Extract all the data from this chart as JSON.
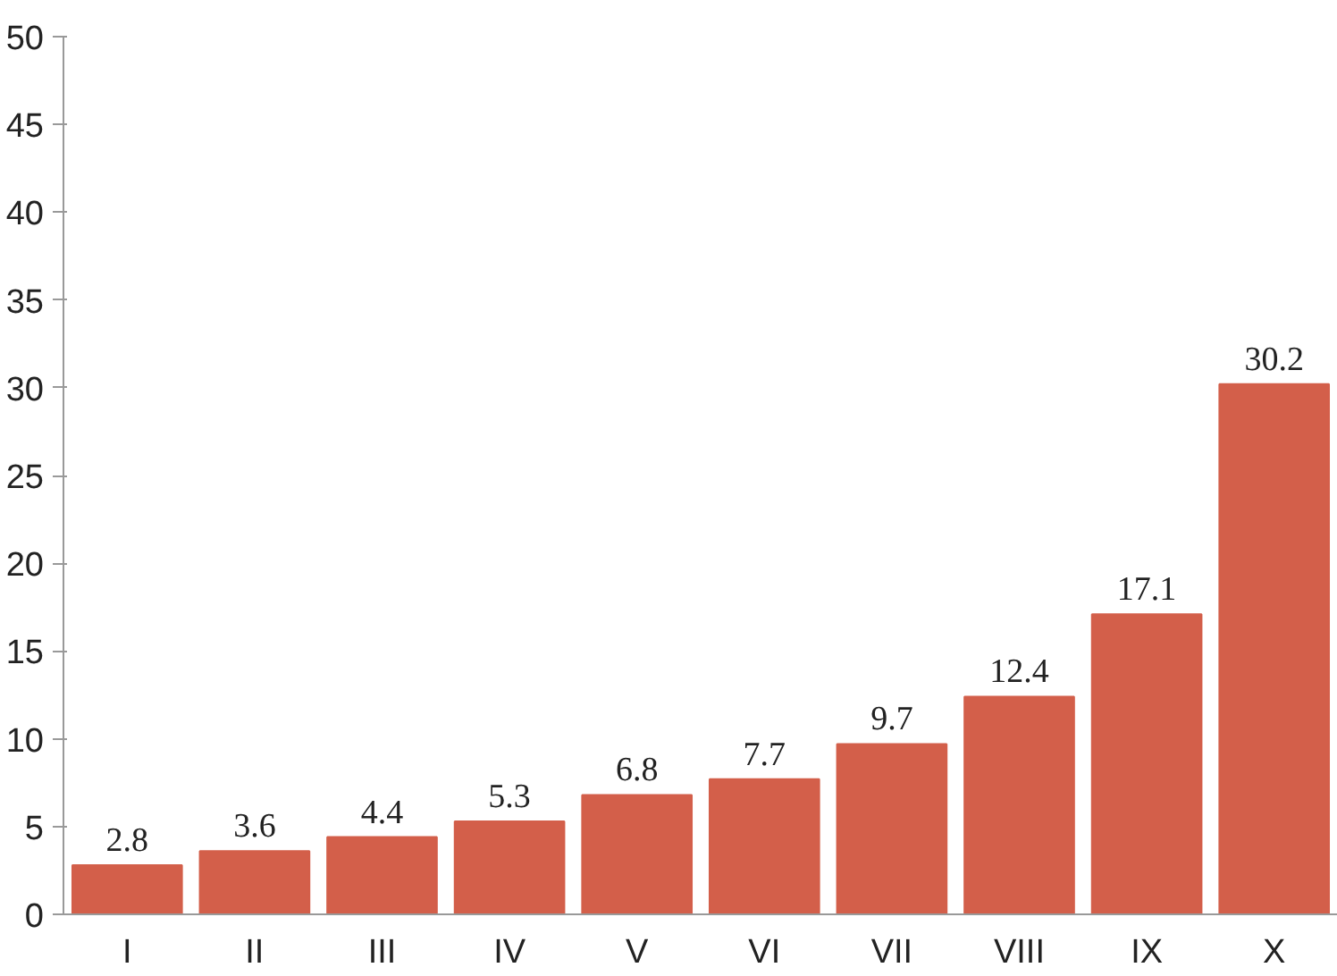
{
  "chart_data": {
    "type": "bar",
    "categories": [
      "I",
      "II",
      "III",
      "IV",
      "V",
      "VI",
      "VII",
      "VIII",
      "IX",
      "X"
    ],
    "values": [
      2.8,
      3.6,
      4.4,
      5.3,
      6.8,
      7.7,
      9.7,
      12.4,
      17.1,
      30.2
    ],
    "color": "#d35f4a",
    "ylim": [
      0,
      50
    ],
    "yticks": [
      0,
      5,
      10,
      15,
      20,
      25,
      30,
      35,
      40,
      45,
      50
    ],
    "grid": false,
    "data_labels": true
  }
}
